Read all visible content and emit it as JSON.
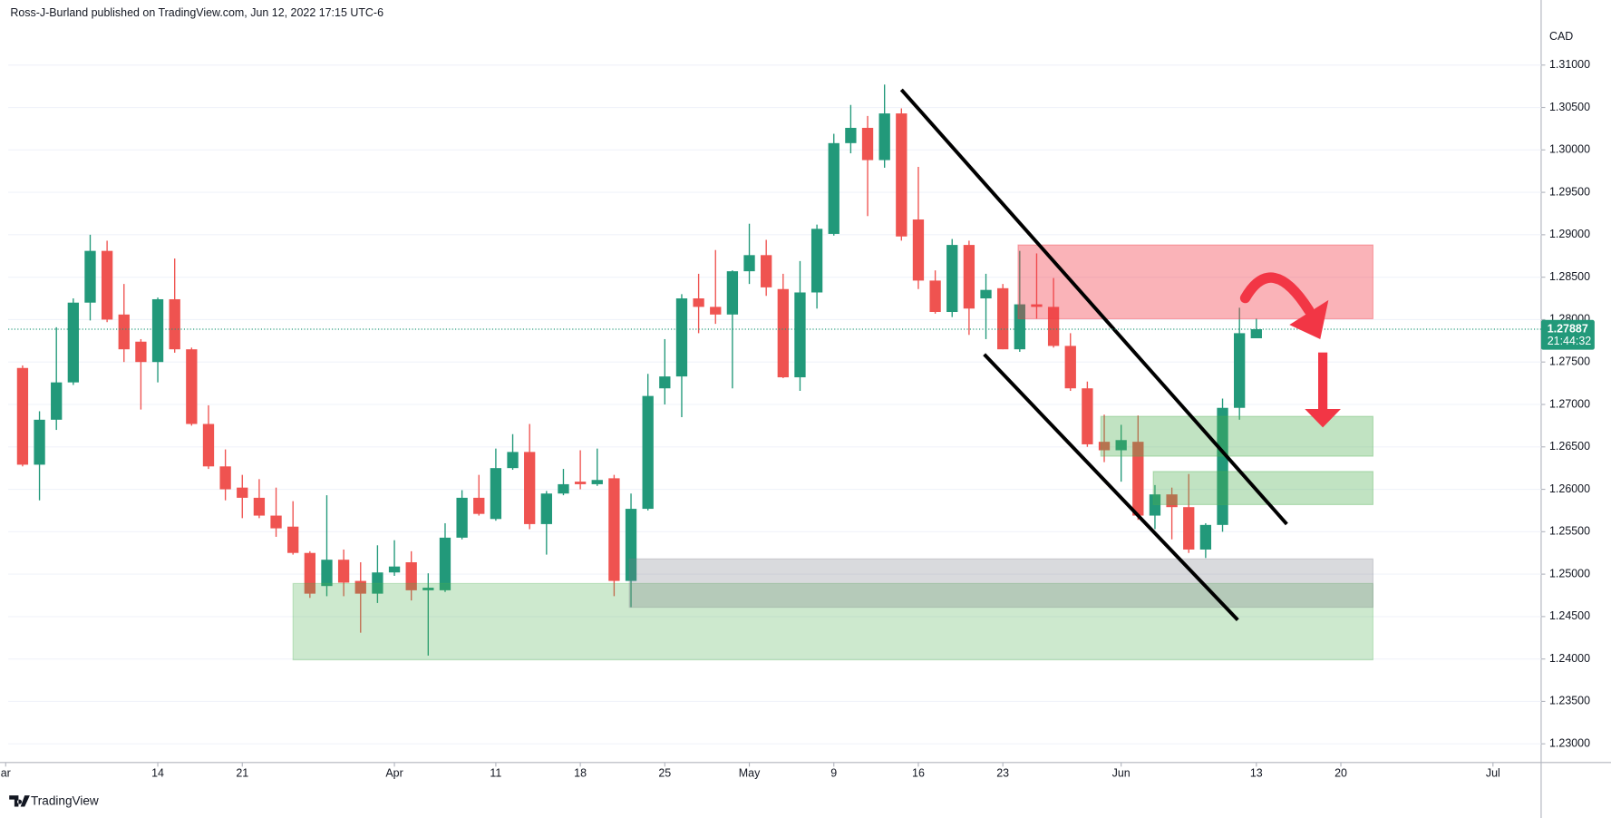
{
  "attribution": "Ross-J-Burland published on TradingView.com, Jun 12, 2022 17:15 UTC-6",
  "logo": "TradingView",
  "chart_data": {
    "type": "candlestick",
    "y_axis_label": "CAD",
    "up_color": "#22997a",
    "down_color": "#ef5350",
    "open": [
      1.2743,
      1.2629,
      1.2682,
      1.2726,
      1.282,
      1.2881,
      1.2806,
      1.2774,
      1.275,
      1.2824,
      1.2765,
      1.2677,
      1.2627,
      1.2602,
      1.259,
      1.2569,
      1.2556,
      1.2525,
      1.2486,
      1.2517,
      1.2492,
      1.2477,
      1.2502,
      1.2514,
      1.2481,
      1.2481,
      1.2543,
      1.259,
      1.2565,
      1.2625,
      1.2644,
      1.2559,
      1.2595,
      1.2609,
      1.2606,
      1.2613,
      1.2492,
      1.2577,
      1.2719,
      1.2733,
      1.2825,
      1.2815,
      1.2806,
      1.2857,
      1.2876,
      1.2836,
      1.2732,
      1.2832,
      1.2901,
      1.3008,
      1.3026,
      1.2988,
      1.3043,
      1.2918,
      1.2846,
      1.2809,
      1.2888,
      1.2825,
      1.2837,
      1.2765,
      1.2818,
      1.2815,
      1.2769,
      1.2719,
      1.2656,
      1.2646,
      1.2656,
      1.2569,
      1.2594,
      1.2579,
      1.2529,
      1.2558,
      1.2696,
      1.2778
    ],
    "high": [
      1.2746,
      1.2692,
      1.2791,
      1.2825,
      1.29,
      1.2893,
      1.2842,
      1.2777,
      1.2826,
      1.2872,
      1.2767,
      1.2699,
      1.2647,
      1.2617,
      1.2612,
      1.2602,
      1.2586,
      1.2527,
      1.2593,
      1.2529,
      1.2514,
      1.2534,
      1.254,
      1.2527,
      1.2501,
      1.256,
      1.2599,
      1.2617,
      1.2648,
      1.2665,
      1.2677,
      1.2598,
      1.2624,
      1.2646,
      1.2648,
      1.2617,
      1.2595,
      1.2736,
      1.2777,
      1.283,
      1.2854,
      1.2882,
      1.2858,
      1.2913,
      1.2894,
      1.2854,
      1.2869,
      1.2912,
      1.3019,
      1.3053,
      1.304,
      1.3077,
      1.3049,
      1.298,
      1.2858,
      1.2895,
      1.2893,
      1.2854,
      1.2842,
      1.2881,
      1.2878,
      1.2849,
      1.2784,
      1.2727,
      1.2688,
      1.2676,
      1.2687,
      1.2605,
      1.2602,
      1.2618,
      1.256,
      1.2707,
      1.2814,
      1.2801
    ],
    "low": [
      1.2627,
      1.2587,
      1.267,
      1.2723,
      1.2799,
      1.2797,
      1.275,
      1.2694,
      1.2726,
      1.2761,
      1.2675,
      1.2624,
      1.2587,
      1.2566,
      1.2566,
      1.2544,
      1.2523,
      1.2472,
      1.2474,
      1.2474,
      1.2431,
      1.2466,
      1.2498,
      1.2469,
      1.2404,
      1.2479,
      1.2541,
      1.2569,
      1.2563,
      1.2623,
      1.2553,
      1.2523,
      1.2593,
      1.26,
      1.2604,
      1.2474,
      1.2461,
      1.2575,
      1.27,
      1.2685,
      1.2784,
      1.2795,
      1.2719,
      1.2842,
      1.2828,
      1.2731,
      1.2716,
      1.2813,
      1.2899,
      1.2996,
      1.2922,
      1.2979,
      1.2893,
      1.2836,
      1.2807,
      1.2803,
      1.2782,
      1.2777,
      1.2765,
      1.2762,
      1.2801,
      1.2767,
      1.2716,
      1.265,
      1.2632,
      1.2609,
      1.2564,
      1.2553,
      1.2541,
      1.2525,
      1.2519,
      1.255,
      1.2682,
      1.2778
    ],
    "close": [
      1.2629,
      1.2682,
      1.2726,
      1.282,
      1.2881,
      1.28,
      1.2765,
      1.275,
      1.2824,
      1.2765,
      1.2677,
      1.2627,
      1.26,
      1.259,
      1.2569,
      1.2554,
      1.2525,
      1.2477,
      1.2517,
      1.249,
      1.2477,
      1.2502,
      1.2509,
      1.2481,
      1.2484,
      1.2543,
      1.259,
      1.2571,
      1.2625,
      1.2644,
      1.2559,
      1.2595,
      1.2606,
      1.2606,
      1.2611,
      1.2492,
      1.2577,
      1.271,
      1.2733,
      1.2825,
      1.2815,
      1.2806,
      1.2857,
      1.2876,
      1.2838,
      1.2732,
      1.2832,
      1.2907,
      1.3008,
      1.3026,
      1.2988,
      1.3043,
      1.2898,
      1.2846,
      1.2809,
      1.2888,
      1.2813,
      1.2835,
      1.2765,
      1.2818,
      1.2815,
      1.2769,
      1.2719,
      1.2653,
      1.2646,
      1.2658,
      1.2569,
      1.2594,
      1.2579,
      1.2529,
      1.2558,
      1.2696,
      1.2784,
      1.27887
    ],
    "xlim": [
      -0.85,
      89.85
    ],
    "xticks": [
      {
        "value": -1,
        "label": "ar"
      },
      {
        "value": 8,
        "label": "14"
      },
      {
        "value": 13,
        "label": "21"
      },
      {
        "value": 22,
        "label": "Apr"
      },
      {
        "value": 28,
        "label": "11"
      },
      {
        "value": 33,
        "label": "18"
      },
      {
        "value": 38,
        "label": "25"
      },
      {
        "value": 43,
        "label": "May"
      },
      {
        "value": 48,
        "label": "9"
      },
      {
        "value": 53,
        "label": "16"
      },
      {
        "value": 58,
        "label": "23"
      },
      {
        "value": 65,
        "label": "Jun"
      },
      {
        "value": 73,
        "label": "13"
      },
      {
        "value": 78,
        "label": "20"
      },
      {
        "value": 87,
        "label": "Jul"
      }
    ],
    "ylim": [
      1.2278,
      1.3167
    ],
    "yticks": [
      {
        "value": 1.23,
        "label": "1.23000"
      },
      {
        "value": 1.235,
        "label": "1.23500"
      },
      {
        "value": 1.24,
        "label": "1.24000"
      },
      {
        "value": 1.245,
        "label": "1.24500"
      },
      {
        "value": 1.25,
        "label": "1.25000"
      },
      {
        "value": 1.255,
        "label": "1.25500"
      },
      {
        "value": 1.26,
        "label": "1.26000"
      },
      {
        "value": 1.265,
        "label": "1.26500"
      },
      {
        "value": 1.27,
        "label": "1.27000"
      },
      {
        "value": 1.275,
        "label": "1.27500"
      },
      {
        "value": 1.28,
        "label": "1.28000"
      },
      {
        "value": 1.285,
        "label": "1.28500"
      },
      {
        "value": 1.29,
        "label": "1.29000"
      },
      {
        "value": 1.295,
        "label": "1.29500"
      },
      {
        "value": 1.3,
        "label": "1.30000"
      },
      {
        "value": 1.305,
        "label": "1.30500"
      },
      {
        "value": 1.31,
        "label": "1.31000"
      }
    ],
    "grid": true,
    "last_price": 1.27887,
    "countdown": "21:44:32",
    "last_price_color": "#22997a",
    "zones": [
      {
        "x0": 58.9,
        "x1": 79.9,
        "y0": 1.2801,
        "y1": 1.2888,
        "color": "rgba(242,54,69,0.38)"
      },
      {
        "x0": 16.0,
        "x1": 79.9,
        "y0": 1.2399,
        "y1": 1.2489,
        "color": "rgba(76,175,80,0.28)"
      },
      {
        "x0": 35.9,
        "x1": 79.9,
        "y0": 1.2461,
        "y1": 1.2518,
        "color": "rgba(120,123,134,0.28)"
      },
      {
        "x0": 63.8,
        "x1": 79.9,
        "y0": 1.2639,
        "y1": 1.2686,
        "color": "rgba(76,175,80,0.35)"
      },
      {
        "x0": 66.9,
        "x1": 79.9,
        "y0": 1.2582,
        "y1": 1.2621,
        "color": "rgba(76,175,80,0.35)"
      }
    ],
    "trendlines": [
      {
        "x": [
          52.0,
          74.8
        ],
        "y": [
          1.3071,
          1.2559
        ],
        "color": "#000000"
      },
      {
        "x": [
          56.9,
          71.9
        ],
        "y": [
          1.2759,
          1.2446
        ],
        "color": "#000000"
      }
    ]
  }
}
